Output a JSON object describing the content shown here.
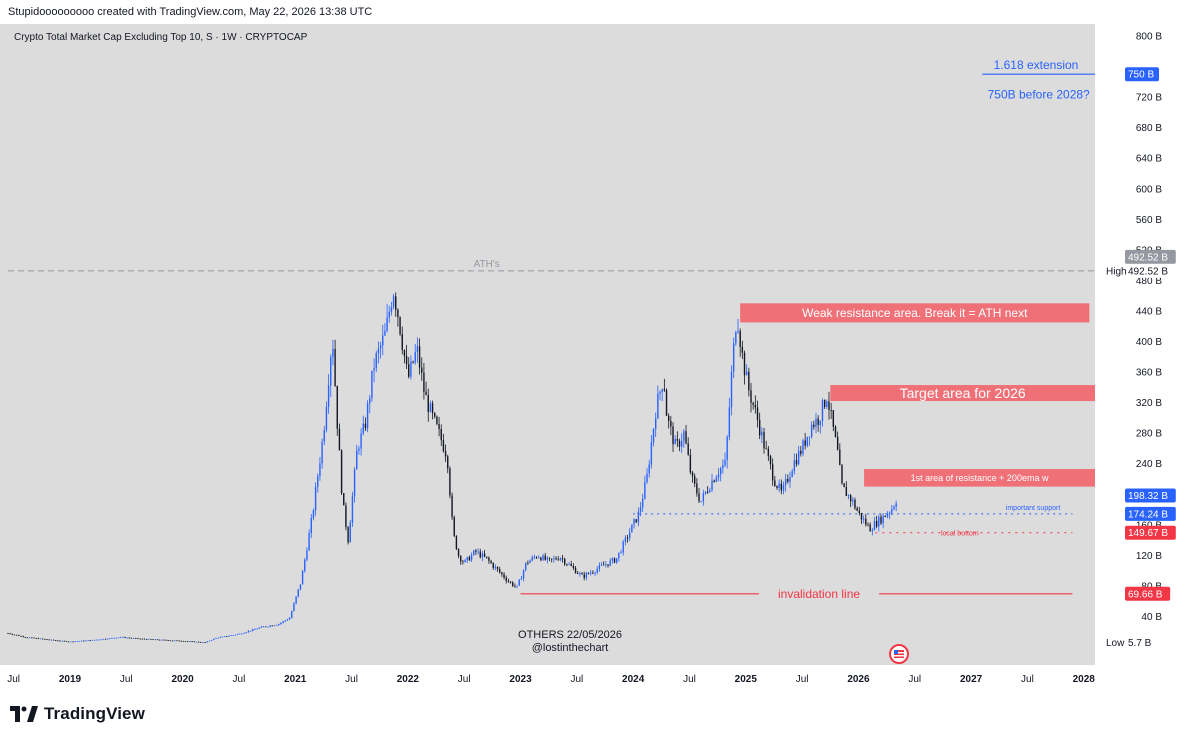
{
  "header": {
    "credit": "Stupidooooooooo created with TradingView.com, May 22, 2026 13:38 UTC"
  },
  "footer": {
    "brand": "TradingView"
  },
  "chart_data": {
    "type": "candlestick",
    "title": "Crypto Total Market Cap Excluding Top 10, S · 1W · CRYPTOCAP",
    "watermark": [
      "OTHERS 22/05/2026",
      "@lostinthechart"
    ],
    "x_range": [
      2018.45,
      2028.1
    ],
    "ylim": [
      0,
      800
    ],
    "y_ticks": [
      {
        "v": 800,
        "label": "800 B"
      },
      {
        "v": 720,
        "label": "720 B"
      },
      {
        "v": 680,
        "label": "680 B"
      },
      {
        "v": 640,
        "label": "640 B"
      },
      {
        "v": 600,
        "label": "600 B"
      },
      {
        "v": 560,
        "label": "560 B"
      },
      {
        "v": 520,
        "label": "520 B"
      },
      {
        "v": 480,
        "label": "480 B"
      },
      {
        "v": 440,
        "label": "440 B"
      },
      {
        "v": 400,
        "label": "400 B"
      },
      {
        "v": 360,
        "label": "360 B"
      },
      {
        "v": 320,
        "label": "320 B"
      },
      {
        "v": 280,
        "label": "280 B"
      },
      {
        "v": 240,
        "label": "240 B"
      },
      {
        "v": 200,
        "label": "200 B"
      },
      {
        "v": 160,
        "label": "160 B"
      },
      {
        "v": 120,
        "label": "120 B"
      },
      {
        "v": 80,
        "label": "80 B"
      },
      {
        "v": 40,
        "label": "40 B"
      }
    ],
    "x_ticks": [
      {
        "t": 2018.5,
        "label": "Jul",
        "bold": false
      },
      {
        "t": 2019.0,
        "label": "2019",
        "bold": true
      },
      {
        "t": 2019.5,
        "label": "Jul",
        "bold": false
      },
      {
        "t": 2020.0,
        "label": "2020",
        "bold": true
      },
      {
        "t": 2020.5,
        "label": "Jul",
        "bold": false
      },
      {
        "t": 2021.0,
        "label": "2021",
        "bold": true
      },
      {
        "t": 2021.5,
        "label": "Jul",
        "bold": false
      },
      {
        "t": 2022.0,
        "label": "2022",
        "bold": true
      },
      {
        "t": 2022.5,
        "label": "Jul",
        "bold": false
      },
      {
        "t": 2023.0,
        "label": "2023",
        "bold": true
      },
      {
        "t": 2023.5,
        "label": "Jul",
        "bold": false
      },
      {
        "t": 2024.0,
        "label": "2024",
        "bold": true
      },
      {
        "t": 2024.5,
        "label": "Jul",
        "bold": false
      },
      {
        "t": 2025.0,
        "label": "2025",
        "bold": true
      },
      {
        "t": 2025.5,
        "label": "Jul",
        "bold": false
      },
      {
        "t": 2026.0,
        "label": "2026",
        "bold": true
      },
      {
        "t": 2026.5,
        "label": "Jul",
        "bold": false
      },
      {
        "t": 2027.0,
        "label": "2027",
        "bold": true
      },
      {
        "t": 2027.5,
        "label": "Jul",
        "bold": false
      },
      {
        "t": 2028.0,
        "label": "2028",
        "bold": true
      }
    ],
    "price_path": [
      [
        2018.45,
        18
      ],
      [
        2018.6,
        13
      ],
      [
        2018.85,
        9
      ],
      [
        2019.0,
        7
      ],
      [
        2019.2,
        9
      ],
      [
        2019.45,
        13
      ],
      [
        2019.6,
        11
      ],
      [
        2019.85,
        9
      ],
      [
        2020.0,
        8
      ],
      [
        2020.2,
        6
      ],
      [
        2020.3,
        12
      ],
      [
        2020.5,
        17
      ],
      [
        2020.7,
        26
      ],
      [
        2020.85,
        30
      ],
      [
        2020.95,
        38
      ],
      [
        2021.05,
        85
      ],
      [
        2021.15,
        170
      ],
      [
        2021.25,
        280
      ],
      [
        2021.33,
        410
      ],
      [
        2021.37,
        300
      ],
      [
        2021.42,
        190
      ],
      [
        2021.47,
        140
      ],
      [
        2021.55,
        260
      ],
      [
        2021.62,
        290
      ],
      [
        2021.7,
        370
      ],
      [
        2021.8,
        410
      ],
      [
        2021.87,
        470
      ],
      [
        2021.92,
        430
      ],
      [
        2022.0,
        350
      ],
      [
        2022.08,
        390
      ],
      [
        2022.15,
        330
      ],
      [
        2022.22,
        300
      ],
      [
        2022.3,
        270
      ],
      [
        2022.35,
        250
      ],
      [
        2022.4,
        150
      ],
      [
        2022.45,
        120
      ],
      [
        2022.5,
        110
      ],
      [
        2022.6,
        125
      ],
      [
        2022.7,
        115
      ],
      [
        2022.8,
        100
      ],
      [
        2022.9,
        85
      ],
      [
        2022.97,
        78
      ],
      [
        2023.05,
        110
      ],
      [
        2023.15,
        120
      ],
      [
        2023.25,
        112
      ],
      [
        2023.35,
        118
      ],
      [
        2023.45,
        105
      ],
      [
        2023.55,
        92
      ],
      [
        2023.65,
        100
      ],
      [
        2023.75,
        108
      ],
      [
        2023.85,
        115
      ],
      [
        2023.95,
        145
      ],
      [
        2024.05,
        175
      ],
      [
        2024.12,
        220
      ],
      [
        2024.2,
        310
      ],
      [
        2024.27,
        355
      ],
      [
        2024.3,
        300
      ],
      [
        2024.38,
        260
      ],
      [
        2024.45,
        280
      ],
      [
        2024.52,
        220
      ],
      [
        2024.6,
        190
      ],
      [
        2024.67,
        210
      ],
      [
        2024.75,
        230
      ],
      [
        2024.82,
        240
      ],
      [
        2024.87,
        350
      ],
      [
        2024.92,
        440
      ],
      [
        2024.97,
        380
      ],
      [
        2025.02,
        340
      ],
      [
        2025.1,
        300
      ],
      [
        2025.17,
        260
      ],
      [
        2025.25,
        220
      ],
      [
        2025.32,
        200
      ],
      [
        2025.42,
        240
      ],
      [
        2025.5,
        260
      ],
      [
        2025.58,
        290
      ],
      [
        2025.65,
        300
      ],
      [
        2025.72,
        330
      ],
      [
        2025.77,
        290
      ],
      [
        2025.82,
        250
      ],
      [
        2025.85,
        210
      ],
      [
        2025.9,
        200
      ],
      [
        2025.95,
        190
      ],
      [
        2026.0,
        175
      ],
      [
        2026.05,
        165
      ],
      [
        2026.1,
        155
      ],
      [
        2026.15,
        162
      ],
      [
        2026.22,
        170
      ],
      [
        2026.3,
        182
      ],
      [
        2026.35,
        198
      ]
    ],
    "hlines": [
      {
        "name": "ath-line",
        "y": 492.52,
        "x_from": 2018.45,
        "x_to": 2028.1,
        "color": "#9598a1",
        "dash": "6,4",
        "label": "ATH's",
        "label_x": 2022.7,
        "label_color": "#9598a1"
      },
      {
        "name": "important-support-line",
        "y": 174.24,
        "x_from": 2024.0,
        "x_to": 2027.9,
        "color": "#2962ff",
        "dash": "2,4",
        "label": "important support",
        "label_x": 2027.55,
        "label_color": "#2962ff"
      },
      {
        "name": "local-bottom-line",
        "y": 149.67,
        "x_from": 2026.15,
        "x_to": 2027.9,
        "color": "#f23645",
        "dash": "2,5",
        "label": "local bottom",
        "label_x": 2026.9,
        "label_color": "#f23645"
      },
      {
        "name": "invalidation-line",
        "y": 69.66,
        "x_from": 2023.0,
        "x_to": 2027.9,
        "color": "#f23645",
        "dash": "",
        "label": "invalidation line",
        "label_x": 2025.65,
        "label_color": "#f23645"
      },
      {
        "name": "extension-line",
        "y": 750,
        "x_from": 2027.1,
        "x_to": 2028.1,
        "color": "#2962ff",
        "dash": "",
        "label": "1.618 extension",
        "label_x": 2027.2,
        "label_color": "#2962ff"
      }
    ],
    "zones": [
      {
        "name": "weak-resistance-zone",
        "y_top": 450,
        "y_bottom": 425,
        "x_from": 2024.95,
        "x_to": 2028.05,
        "text": "Weak resistance area. Break it = ATH next",
        "font": 12
      },
      {
        "name": "target-zone",
        "y_top": 343,
        "y_bottom": 322,
        "x_from": 2025.75,
        "x_to": 2028.1,
        "text": "Target area for 2026",
        "font": 14
      },
      {
        "name": "first-resistance-zone",
        "y_top": 233,
        "y_bottom": 210,
        "x_from": 2026.05,
        "x_to": 2028.1,
        "text": "1st area of resistance + 200ema w",
        "font": 9
      }
    ],
    "annotation_text": {
      "text": "750B before 2028?",
      "x": 2027.6,
      "y": 718,
      "color": "#2962ff"
    },
    "price_labels": [
      {
        "y": 750,
        "label": "750 B",
        "bg": "#2962ff",
        "fg": "#ffffff"
      },
      {
        "y": 492.52,
        "label": "492.52 B",
        "bg": "#9598a1",
        "fg": "#ffffff",
        "offset": -14
      },
      {
        "y": 492.52,
        "label": "492.52 B",
        "bg": "#ffffff",
        "fg": "#131722",
        "prefix": "High",
        "offset": 0
      },
      {
        "y": 198.32,
        "label": "198.32 B",
        "bg": "#2962ff",
        "fg": "#ffffff"
      },
      {
        "y": 174.24,
        "label": "174.24 B",
        "bg": "#2962ff",
        "fg": "#ffffff"
      },
      {
        "y": 149.67,
        "label": "149.67 B",
        "bg": "#f23645",
        "fg": "#ffffff"
      },
      {
        "y": 69.66,
        "label": "69.66 B",
        "bg": "#f23645",
        "fg": "#ffffff"
      },
      {
        "y": 5.7,
        "label": "5.7 B",
        "bg": "#ffffff",
        "fg": "#131722",
        "prefix": "Low"
      }
    ],
    "colors": {
      "bg": "#dcdcdc",
      "up": "#2962ff",
      "down": "#131722",
      "zone": "#f07078",
      "axis_text": "#131722"
    }
  }
}
